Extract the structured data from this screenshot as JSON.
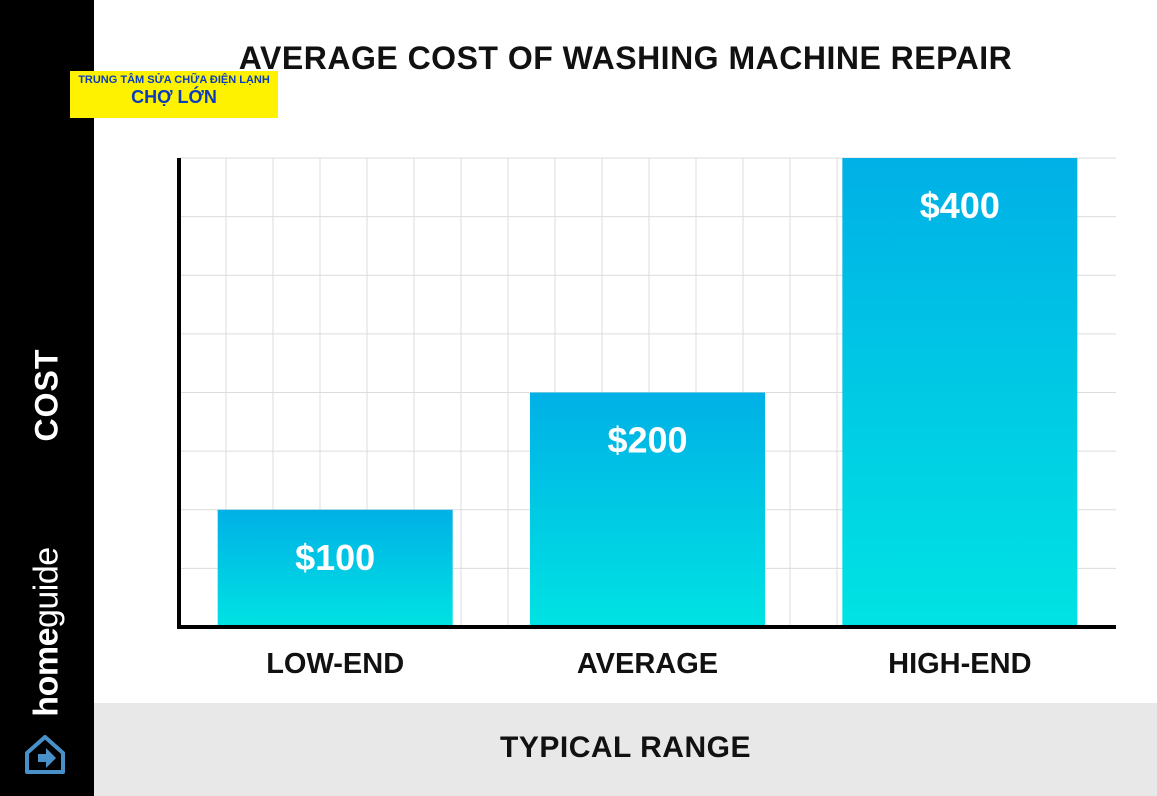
{
  "chart_data": {
    "type": "bar",
    "title": "AVERAGE COST OF WASHING MACHINE REPAIR",
    "categories": [
      "LOW-END",
      "AVERAGE",
      "HIGH-END"
    ],
    "values": [
      100,
      200,
      400
    ],
    "value_labels": [
      "$100",
      "$200",
      "$400"
    ],
    "xlabel": "TYPICAL RANGE",
    "ylabel": "COST",
    "ylim": [
      0,
      400
    ],
    "grid": true,
    "bar_gradient": [
      "#00b0e6",
      "#00e3e3"
    ]
  },
  "branding": {
    "name_bold": "home",
    "name_light": "guide",
    "logo_icon": "house-icon"
  },
  "watermark": {
    "line1": "TRUNG TÂM SỬA CHỮA ĐIỆN LẠNH",
    "line2": "CHỢ LỚN"
  }
}
